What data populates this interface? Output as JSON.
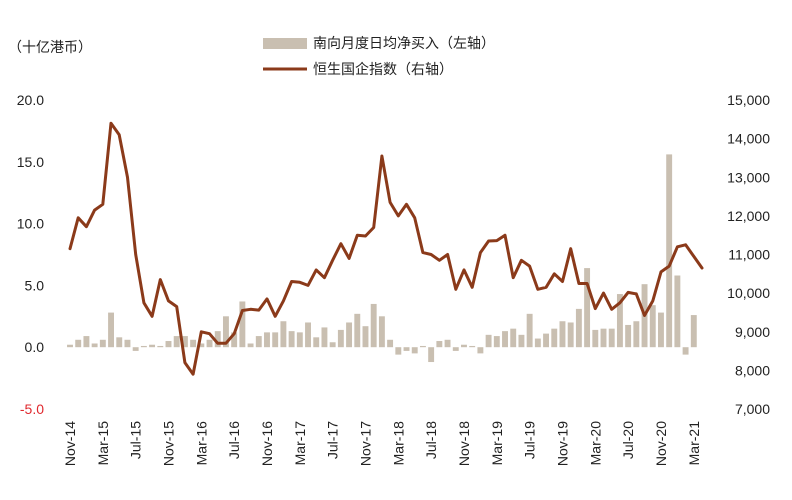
{
  "unit_label": "（十亿港币）",
  "chart_data": {
    "type": "bar+line",
    "colors": {
      "bar": "#c9bfb1",
      "line": "#8b3a1a",
      "negative_tick": "#e0282e"
    },
    "legend": [
      {
        "key": "bar",
        "label": "南向月度日均净买入（左轴）"
      },
      {
        "key": "line",
        "label": "恒生国企指数（右轴）"
      }
    ],
    "legend_position": "top",
    "grid": false,
    "y_left": {
      "min": -5,
      "max": 20,
      "ticks": [
        "-5.0",
        "0.0",
        "5.0",
        "10.0",
        "15.0",
        "20.0"
      ],
      "tick_values": [
        -5,
        0,
        5,
        10,
        15,
        20
      ]
    },
    "y_right": {
      "min": 7000,
      "max": 15000,
      "ticks": [
        "7,000",
        "8,000",
        "9,000",
        "10,000",
        "11,000",
        "12,000",
        "13,000",
        "14,000",
        "15,000"
      ],
      "tick_values": [
        7000,
        8000,
        9000,
        10000,
        11000,
        12000,
        13000,
        14000,
        15000
      ]
    },
    "x_ticks": [
      {
        "label": "Nov-14",
        "index": 0
      },
      {
        "label": "Mar-15",
        "index": 4
      },
      {
        "label": "Jul-15",
        "index": 8
      },
      {
        "label": "Nov-15",
        "index": 12
      },
      {
        "label": "Mar-16",
        "index": 16
      },
      {
        "label": "Jul-16",
        "index": 20
      },
      {
        "label": "Nov-16",
        "index": 24
      },
      {
        "label": "Mar-17",
        "index": 28
      },
      {
        "label": "Jul-17",
        "index": 32
      },
      {
        "label": "Nov-17",
        "index": 36
      },
      {
        "label": "Mar-18",
        "index": 40
      },
      {
        "label": "Jul-18",
        "index": 44
      },
      {
        "label": "Nov-18",
        "index": 48
      },
      {
        "label": "Mar-19",
        "index": 52
      },
      {
        "label": "Jul-19",
        "index": 56
      },
      {
        "label": "Nov-19",
        "index": 60
      },
      {
        "label": "Mar-20",
        "index": 64
      },
      {
        "label": "Jul-20",
        "index": 68
      },
      {
        "label": "Nov-20",
        "index": 72
      },
      {
        "label": "Mar-21",
        "index": 76
      }
    ],
    "series": [
      {
        "key": "bar",
        "axis": "left",
        "values": [
          0.2,
          0.6,
          0.9,
          0.3,
          0.6,
          2.8,
          0.8,
          0.6,
          -0.3,
          0.1,
          0.2,
          0.1,
          0.5,
          0.9,
          0.9,
          0.6,
          0.3,
          0.6,
          1.3,
          2.5,
          1.2,
          3.7,
          0.3,
          0.9,
          1.2,
          1.2,
          2.1,
          1.3,
          1.2,
          2.0,
          0.8,
          1.6,
          0.4,
          1.4,
          2.0,
          2.7,
          1.7,
          3.5,
          2.5,
          0.6,
          -0.6,
          -0.3,
          -0.5,
          0.1,
          -1.2,
          0.5,
          0.6,
          -0.3,
          0.2,
          0.1,
          -0.5,
          1.0,
          0.9,
          1.3,
          1.5,
          1.0,
          2.7,
          0.7,
          1.1,
          1.5,
          2.1,
          2.0,
          3.1,
          6.4,
          1.4,
          1.5,
          1.5,
          4.3,
          1.8,
          2.1,
          5.1,
          3.4,
          2.8,
          15.6,
          5.8,
          -0.6,
          2.6
        ],
        "value_suffix": ""
      },
      {
        "key": "line",
        "axis": "right",
        "values": [
          11150,
          11950,
          11720,
          12150,
          12300,
          14400,
          14100,
          13000,
          11000,
          9750,
          9400,
          10350,
          9800,
          9650,
          8200,
          7900,
          9000,
          8950,
          8700,
          8700,
          8950,
          9550,
          9580,
          9560,
          9850,
          9400,
          9800,
          10300,
          10280,
          10200,
          10600,
          10400,
          10850,
          11280,
          10900,
          11500,
          11480,
          11700,
          13550,
          12350,
          12000,
          12300,
          11950,
          11050,
          11000,
          10850,
          11000,
          10100,
          10600,
          10150,
          11050,
          11350,
          11360,
          11500,
          10400,
          10850,
          10700,
          10100,
          10150,
          10500,
          10300,
          11150,
          10250,
          10250,
          9600,
          10000,
          9580,
          9750,
          10020,
          9980,
          9420,
          9800,
          10550,
          10700,
          11200,
          11250,
          10950,
          10650
        ]
      }
    ]
  }
}
